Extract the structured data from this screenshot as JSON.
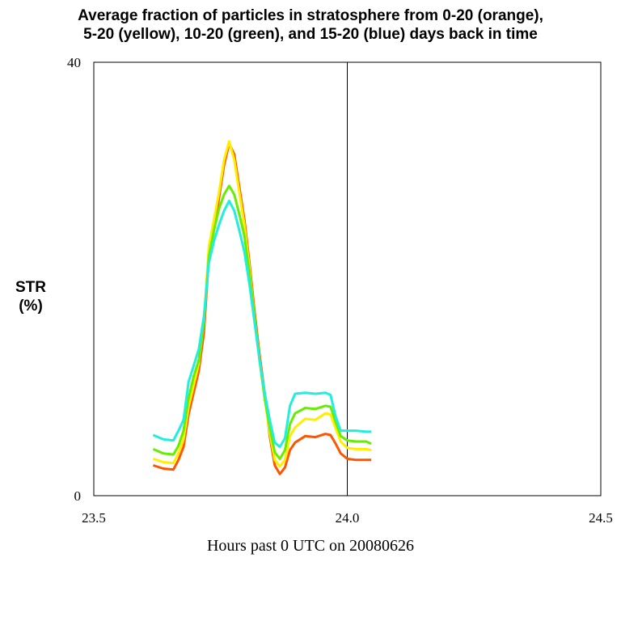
{
  "chart_data": {
    "type": "line",
    "title_line1": "Average fraction of particles in stratosphere from 0-20 (orange),",
    "title_line2": "5-20 (yellow), 10-20 (green), and 15-20 (blue) days back in time",
    "ylabel_line1": "STR",
    "ylabel_line2": "(%)",
    "xlabel": "Hours past 0 UTC on 20080626",
    "xlim": [
      23.5,
      24.5
    ],
    "ylim": [
      0,
      40
    ],
    "x_ticks": [
      23.5,
      24.0,
      24.5
    ],
    "x_tick_labels": [
      "23.5",
      "24.0",
      "24.5"
    ],
    "y_ticks": [
      0,
      40
    ],
    "y_tick_labels": [
      "0",
      "40"
    ],
    "vline_x": 24.0,
    "grid": false,
    "series": [
      {
        "color": "#ff5500",
        "x": [
          23.617,
          23.637,
          23.657,
          23.667,
          23.677,
          23.687,
          23.697,
          23.707,
          23.717,
          23.727,
          23.737,
          23.747,
          23.757,
          23.767,
          23.777,
          23.787,
          23.797,
          23.807,
          23.817,
          23.827,
          23.837,
          23.847,
          23.857,
          23.867,
          23.877,
          23.887,
          23.897,
          23.917,
          23.937,
          23.957,
          23.967,
          23.977,
          23.987,
          24.0,
          24.017,
          24.037,
          24.047
        ],
        "values": [
          2.8,
          2.5,
          2.4,
          3.3,
          4.5,
          7.5,
          9.5,
          11.5,
          15.0,
          22.0,
          24.5,
          27.5,
          30.5,
          32.5,
          31.5,
          28.5,
          25.5,
          21.5,
          17.0,
          13.0,
          9.5,
          5.5,
          2.8,
          2.0,
          2.6,
          4.2,
          4.9,
          5.5,
          5.4,
          5.7,
          5.6,
          4.8,
          3.9,
          3.4,
          3.3,
          3.3,
          3.3
        ]
      },
      {
        "color": "#ffee00",
        "x": [
          23.617,
          23.637,
          23.657,
          23.667,
          23.677,
          23.687,
          23.697,
          23.707,
          23.717,
          23.727,
          23.737,
          23.747,
          23.757,
          23.767,
          23.777,
          23.787,
          23.797,
          23.807,
          23.817,
          23.827,
          23.837,
          23.847,
          23.857,
          23.867,
          23.877,
          23.887,
          23.897,
          23.917,
          23.937,
          23.957,
          23.967,
          23.977,
          23.987,
          24.0,
          24.017,
          24.037,
          24.047
        ],
        "values": [
          3.4,
          3.1,
          3.0,
          3.9,
          5.2,
          8.2,
          10.2,
          12.2,
          16.0,
          23.0,
          25.5,
          28.0,
          31.0,
          32.7,
          31.0,
          28.0,
          25.0,
          21.0,
          16.5,
          12.5,
          9.0,
          5.8,
          3.3,
          2.7,
          3.3,
          5.5,
          6.3,
          7.1,
          7.0,
          7.6,
          7.5,
          6.2,
          5.0,
          4.4,
          4.3,
          4.3,
          4.2
        ]
      },
      {
        "color": "#66ee00",
        "x": [
          23.617,
          23.637,
          23.657,
          23.667,
          23.677,
          23.687,
          23.697,
          23.707,
          23.717,
          23.727,
          23.737,
          23.747,
          23.757,
          23.767,
          23.777,
          23.787,
          23.797,
          23.807,
          23.817,
          23.827,
          23.837,
          23.847,
          23.857,
          23.867,
          23.877,
          23.887,
          23.897,
          23.917,
          23.937,
          23.957,
          23.967,
          23.977,
          23.987,
          24.0,
          24.017,
          24.037,
          24.047
        ],
        "values": [
          4.3,
          3.9,
          3.8,
          4.6,
          6.0,
          9.0,
          11.0,
          12.5,
          16.0,
          22.0,
          24.5,
          26.5,
          27.8,
          28.6,
          27.8,
          26.0,
          24.0,
          20.5,
          16.5,
          12.5,
          9.0,
          6.3,
          4.0,
          3.4,
          4.2,
          6.6,
          7.6,
          8.1,
          8.0,
          8.3,
          8.2,
          6.8,
          5.5,
          5.1,
          5.0,
          5.0,
          4.8
        ]
      },
      {
        "color": "#22eedd",
        "x": [
          23.617,
          23.637,
          23.657,
          23.667,
          23.677,
          23.687,
          23.697,
          23.707,
          23.717,
          23.727,
          23.737,
          23.747,
          23.757,
          23.767,
          23.777,
          23.787,
          23.797,
          23.807,
          23.817,
          23.827,
          23.837,
          23.847,
          23.857,
          23.867,
          23.877,
          23.887,
          23.897,
          23.917,
          23.937,
          23.957,
          23.967,
          23.977,
          23.987,
          24.0,
          24.017,
          24.037,
          24.047
        ],
        "values": [
          5.6,
          5.2,
          5.1,
          6.0,
          7.0,
          10.5,
          12.0,
          13.5,
          16.5,
          21.5,
          23.5,
          25.0,
          26.3,
          27.2,
          26.3,
          24.5,
          22.5,
          19.5,
          16.0,
          12.5,
          9.5,
          7.0,
          4.9,
          4.5,
          5.3,
          8.3,
          9.4,
          9.5,
          9.4,
          9.5,
          9.3,
          7.3,
          6.0,
          6.0,
          6.0,
          5.9,
          5.9
        ]
      }
    ]
  }
}
